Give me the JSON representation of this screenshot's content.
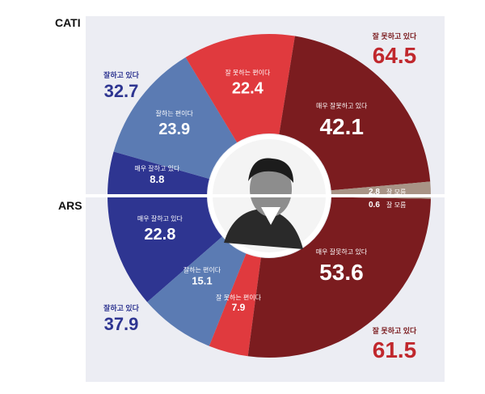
{
  "side_labels": {
    "top": "CATI",
    "bottom": "ARS"
  },
  "colors": {
    "very_good": "#2e3591",
    "good": "#5b7bb3",
    "bad": "#e03a3e",
    "very_bad": "#7b1c1f",
    "dont_know": "#a89486",
    "panel": "#ecedf3"
  },
  "chart_data": [
    {
      "type": "pie",
      "name": "CATI",
      "half": "top",
      "segments": [
        {
          "label": "매우 잘하고 있다",
          "value": 8.8,
          "color": "#2e3591"
        },
        {
          "label": "잘하는 편이다",
          "value": 23.9,
          "color": "#5b7bb3"
        },
        {
          "label": "잘 못하는 편이다",
          "value": 22.4,
          "color": "#e03a3e"
        },
        {
          "label": "매우 잘못하고 있다",
          "value": 42.1,
          "color": "#7b1c1f"
        },
        {
          "label": "잘 모름",
          "value": 2.8,
          "color": "#a89486"
        }
      ],
      "totals": {
        "positive": {
          "label": "잘하고 있다",
          "value": 32.7
        },
        "negative": {
          "label": "잘 못하고 있다",
          "value": 64.5
        }
      }
    },
    {
      "type": "pie",
      "name": "ARS",
      "half": "bottom",
      "segments": [
        {
          "label": "매우 잘하고 있다",
          "value": 22.8,
          "color": "#2e3591"
        },
        {
          "label": "잘하는 편이다",
          "value": 15.1,
          "color": "#5b7bb3"
        },
        {
          "label": "잘 못하는 편이다",
          "value": 7.9,
          "color": "#e03a3e"
        },
        {
          "label": "매우 잘못하고 있다",
          "value": 53.6,
          "color": "#7b1c1f"
        },
        {
          "label": "잘 모름",
          "value": 0.6,
          "color": "#a89486"
        }
      ],
      "totals": {
        "positive": {
          "label": "잘하고 있다",
          "value": 37.9
        },
        "negative": {
          "label": "잘 못하고 있다",
          "value": 61.5
        }
      }
    }
  ]
}
